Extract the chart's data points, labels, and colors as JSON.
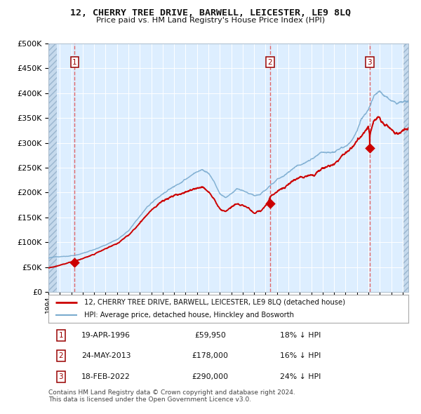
{
  "title": "12, CHERRY TREE DRIVE, BARWELL, LEICESTER, LE9 8LQ",
  "subtitle": "Price paid vs. HM Land Registry's House Price Index (HPI)",
  "footer_line1": "Contains HM Land Registry data © Crown copyright and database right 2024.",
  "footer_line2": "This data is licensed under the Open Government Licence v3.0.",
  "legend_red": "12, CHERRY TREE DRIVE, BARWELL, LEICESTER, LE9 8LQ (detached house)",
  "legend_blue": "HPI: Average price, detached house, Hinckley and Bosworth",
  "table_rows": [
    {
      "num": 1,
      "date": "19-APR-1996",
      "price": "£59,950",
      "hpi": "18% ↓ HPI"
    },
    {
      "num": 2,
      "date": "24-MAY-2013",
      "price": "£178,000",
      "hpi": "16% ↓ HPI"
    },
    {
      "num": 3,
      "date": "18-FEB-2022",
      "price": "£290,000",
      "hpi": "24% ↓ HPI"
    }
  ],
  "sale_points": [
    {
      "year": 1996.3,
      "price": 59950
    },
    {
      "year": 2013.38,
      "price": 178000
    },
    {
      "year": 2022.12,
      "price": 290000
    }
  ],
  "vline_years": [
    1996.3,
    2013.38,
    2022.12
  ],
  "ylim": [
    0,
    500000
  ],
  "xlim_start": 1994.0,
  "xlim_end": 2025.5,
  "red_color": "#cc0000",
  "blue_color": "#7aabcf",
  "grid_color": "#ffffff",
  "vline_color": "#e05050",
  "plot_bg": "#ddeeff",
  "hatch_left_end": 1994.75,
  "hatch_right_start": 2025.08
}
